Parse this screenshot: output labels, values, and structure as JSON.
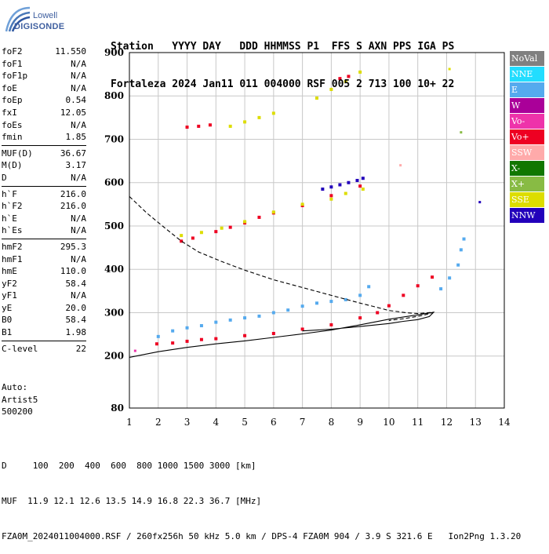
{
  "logo": {
    "line1": "Lowell",
    "line2": "DIGISONDE"
  },
  "header": {
    "line1": "Station   YYYY DAY   DDD HHMMSS P1  FFS S AXN PPS IGA PS",
    "line2": "Fortaleza 2024 Jan11 011 004000 RSF 005 2 713 100 10+ 22"
  },
  "params": [
    [
      {
        "k": "foF2",
        "v": "11.550"
      },
      {
        "k": "foF1",
        "v": "N/A"
      },
      {
        "k": "foF1p",
        "v": "N/A"
      },
      {
        "k": "foE",
        "v": "N/A"
      },
      {
        "k": "foEp",
        "v": "0.54"
      },
      {
        "k": "fxI",
        "v": "12.05"
      },
      {
        "k": "foEs",
        "v": "N/A"
      },
      {
        "k": "fmin",
        "v": "1.85"
      }
    ],
    [
      {
        "k": "MUF(D)",
        "v": "36.67"
      },
      {
        "k": "M(D)",
        "v": "3.17"
      },
      {
        "k": "D",
        "v": "N/A"
      }
    ],
    [
      {
        "k": "h`F",
        "v": "216.0"
      },
      {
        "k": "h`F2",
        "v": "216.0"
      },
      {
        "k": "h`E",
        "v": "N/A"
      },
      {
        "k": "h`Es",
        "v": "N/A"
      }
    ],
    [
      {
        "k": "hmF2",
        "v": "295.3"
      },
      {
        "k": "hmF1",
        "v": "N/A"
      },
      {
        "k": "hmE",
        "v": "110.0"
      },
      {
        "k": "yF2",
        "v": "58.4"
      },
      {
        "k": "yF1",
        "v": "N/A"
      },
      {
        "k": "yE",
        "v": "20.0"
      },
      {
        "k": "B0",
        "v": "58.4"
      },
      {
        "k": "B1",
        "v": "1.98"
      }
    ],
    [
      {
        "k": "C-level",
        "v": "22"
      }
    ]
  ],
  "auto": {
    "line1": "Auto:",
    "line2": "Artist5",
    "line3": "500200"
  },
  "footer": {
    "line1": "D     100  200  400  600  800 1000 1500 3000 [km]",
    "line2": "MUF  11.9 12.1 12.6 13.5 14.9 16.8 22.3 36.7 [MHz]",
    "line3": "FZA0M_2024011004000.RSF / 260fx256h 50 kHz 5.0 km / DPS-4 FZA0M 904 / 3.9 S 321.6 E   Ion2Png 1.3.20"
  },
  "legend": [
    {
      "label": "NoVal",
      "color": "#808080"
    },
    {
      "label": "NNE",
      "color": "#22ddff"
    },
    {
      "label": "E",
      "color": "#55aaee"
    },
    {
      "label": "W",
      "color": "#aa0099"
    },
    {
      "label": "Vo-",
      "color": "#ee33aa"
    },
    {
      "label": "Vo+",
      "color": "#ee0022"
    },
    {
      "label": "SSW",
      "color": "#ffaaaa"
    },
    {
      "label": "X-",
      "color": "#117700"
    },
    {
      "label": "X+",
      "color": "#88bb44"
    },
    {
      "label": "SSE",
      "color": "#dddd00"
    },
    {
      "label": "NNW",
      "color": "#2200bb"
    }
  ],
  "chart_data": {
    "type": "scatter",
    "xlim": [
      1,
      14
    ],
    "ylim": [
      80,
      900
    ],
    "xticks": [
      "1",
      "2",
      "3",
      "4",
      "5",
      "6",
      "7",
      "8",
      "9",
      "10",
      "11",
      "12",
      "13",
      "14"
    ],
    "yticks": [
      {
        "v": 80,
        "label": "80"
      },
      {
        "v": 200,
        "label": "200"
      },
      {
        "v": 300,
        "label": "300"
      },
      {
        "v": 400,
        "label": "400"
      },
      {
        "v": 500,
        "label": "500"
      },
      {
        "v": 600,
        "label": "600"
      },
      {
        "v": 700,
        "label": "700"
      },
      {
        "v": 800,
        "label": "800"
      },
      {
        "v": 900,
        "label": "900"
      }
    ],
    "grid": true,
    "traces": [
      {
        "name": "lower-echo",
        "color": "#ee0022",
        "points": [
          [
            1.95,
            228
          ],
          [
            2.5,
            230
          ],
          [
            3,
            234
          ],
          [
            3.5,
            238
          ],
          [
            4,
            240
          ],
          [
            5,
            247
          ],
          [
            6,
            252
          ],
          [
            7,
            262
          ],
          [
            8,
            272
          ],
          [
            9,
            288
          ],
          [
            9.6,
            300
          ],
          [
            10,
            316
          ],
          [
            10.5,
            340
          ],
          [
            11,
            362
          ],
          [
            11.5,
            382
          ]
        ]
      },
      {
        "name": "lower-echo-e",
        "color": "#55aaee",
        "points": [
          [
            2,
            245
          ],
          [
            2.5,
            258
          ],
          [
            3,
            265
          ],
          [
            3.5,
            270
          ],
          [
            4,
            278
          ],
          [
            4.5,
            283
          ],
          [
            5,
            288
          ],
          [
            5.5,
            292
          ],
          [
            6,
            300
          ],
          [
            6.5,
            306
          ],
          [
            7,
            315
          ],
          [
            7.5,
            322
          ],
          [
            8,
            326
          ],
          [
            8.5,
            330
          ],
          [
            9,
            340
          ],
          [
            9.3,
            360
          ]
        ]
      },
      {
        "name": "upper-e",
        "color": "#55aaee",
        "points": [
          [
            11.8,
            355
          ],
          [
            12.1,
            380
          ],
          [
            12.4,
            410
          ],
          [
            12.5,
            445
          ],
          [
            12.6,
            470
          ]
        ]
      },
      {
        "name": "second-hop",
        "color": "#ee0022",
        "points": [
          [
            2.8,
            465
          ],
          [
            3.2,
            472
          ],
          [
            4,
            487
          ],
          [
            4.5,
            497
          ],
          [
            5,
            507
          ],
          [
            5.5,
            520
          ],
          [
            6,
            530
          ],
          [
            7,
            547
          ],
          [
            8,
            570
          ],
          [
            9,
            592
          ]
        ]
      },
      {
        "name": "second-hop-sse",
        "color": "#dddd00",
        "points": [
          [
            2.8,
            478
          ],
          [
            3.5,
            485
          ],
          [
            4.2,
            495
          ],
          [
            5,
            510
          ],
          [
            6,
            532
          ],
          [
            7,
            550
          ],
          [
            8,
            562
          ],
          [
            8.5,
            575
          ],
          [
            9.1,
            585
          ]
        ]
      },
      {
        "name": "nnw-cluster",
        "color": "#2200bb",
        "points": [
          [
            7.7,
            585
          ],
          [
            8,
            590
          ],
          [
            8.3,
            595
          ],
          [
            8.6,
            600
          ],
          [
            8.9,
            605
          ],
          [
            9.1,
            610
          ]
        ]
      },
      {
        "name": "third-hop",
        "color": "#dddd00",
        "points": [
          [
            4.5,
            730
          ],
          [
            5,
            740
          ],
          [
            5.5,
            750
          ],
          [
            6,
            760
          ],
          [
            7.5,
            795
          ],
          [
            8,
            815
          ],
          [
            8.5,
            833
          ],
          [
            9,
            855
          ]
        ]
      },
      {
        "name": "third-hop-red",
        "color": "#ee0022",
        "points": [
          [
            3,
            728
          ],
          [
            3.4,
            730
          ],
          [
            3.8,
            733
          ],
          [
            8.3,
            840
          ],
          [
            8.6,
            845
          ]
        ]
      }
    ],
    "curves": [
      {
        "name": "profile",
        "style": "solid",
        "points": [
          [
            1,
            197
          ],
          [
            2,
            210
          ],
          [
            3,
            220
          ],
          [
            4,
            228
          ],
          [
            5,
            235
          ],
          [
            6,
            243
          ],
          [
            7,
            251
          ],
          [
            8,
            260
          ],
          [
            9,
            272
          ],
          [
            10,
            285
          ],
          [
            11,
            295
          ],
          [
            11.55,
            301
          ],
          [
            11.4,
            291
          ],
          [
            11,
            284
          ],
          [
            10.5,
            280
          ],
          [
            10,
            275
          ],
          [
            9,
            268
          ],
          [
            8,
            262
          ],
          [
            7,
            258
          ]
        ]
      },
      {
        "name": "muf",
        "style": "dashed",
        "points": [
          [
            1,
            568
          ],
          [
            1.6,
            530
          ],
          [
            2.2,
            497
          ],
          [
            2.8,
            465
          ],
          [
            3.4,
            440
          ],
          [
            4.2,
            418
          ],
          [
            5,
            398
          ],
          [
            6,
            376
          ],
          [
            7,
            358
          ],
          [
            8,
            340
          ],
          [
            9,
            322
          ],
          [
            9.6,
            312
          ],
          [
            10,
            305
          ],
          [
            10.6,
            300
          ],
          [
            11,
            298
          ],
          [
            11.55,
            301
          ],
          [
            11.2,
            294
          ],
          [
            10.5,
            286
          ],
          [
            10,
            282
          ]
        ]
      }
    ],
    "scatter": [
      {
        "x": 12.1,
        "y": 862,
        "color": "#dddd00"
      },
      {
        "x": 12.5,
        "y": 716,
        "color": "#88bb44"
      },
      {
        "x": 10.4,
        "y": 640,
        "color": "#ffaaaa"
      },
      {
        "x": 13.15,
        "y": 555,
        "color": "#2200bb"
      },
      {
        "x": 1.2,
        "y": 212,
        "color": "#ee33aa"
      }
    ]
  }
}
